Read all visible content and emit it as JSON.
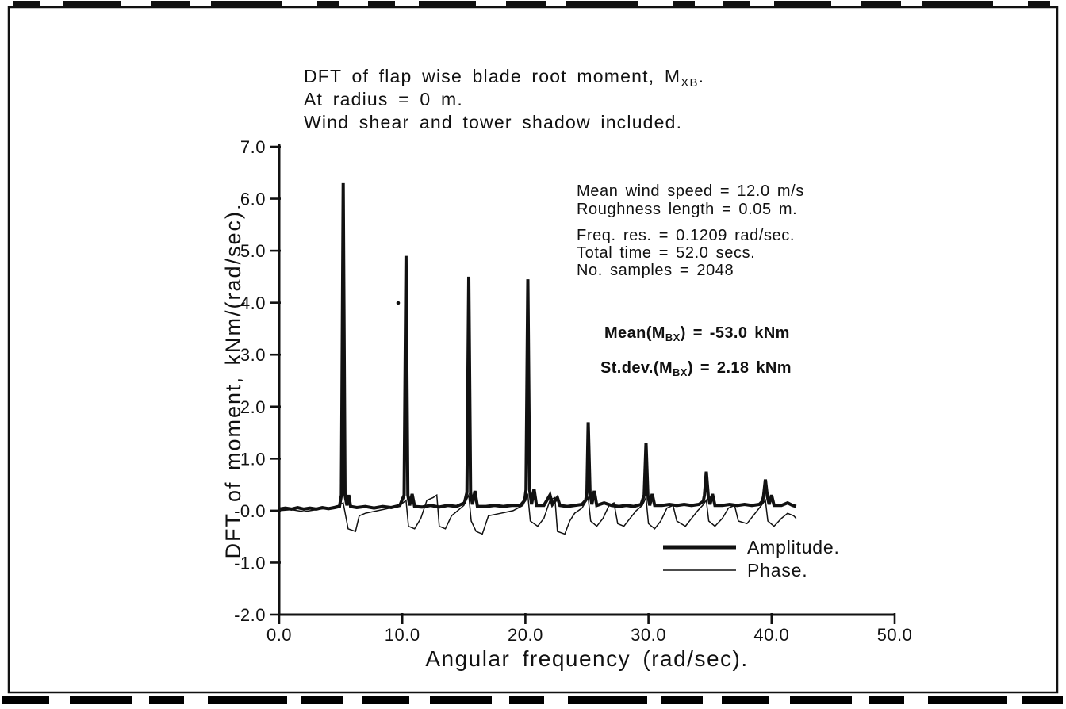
{
  "figure": {
    "title_lines": [
      {
        "pre": "DFT of flap wise blade root moment, M",
        "sub": "XB",
        "post": "."
      },
      {
        "pre": "At radius = 0 m.",
        "sub": "",
        "post": ""
      },
      {
        "pre": "Wind shear and tower shadow included.",
        "sub": "",
        "post": ""
      }
    ],
    "annotations": {
      "wind_speed": "Mean wind speed = 12.0 m/s",
      "roughness": "Roughness length = 0.05 m.",
      "freq_res": "Freq. res. = 0.1209 rad/sec.",
      "total_time": "Total time = 52.0 secs.",
      "samples": "No. samples = 2048",
      "mean": {
        "pre": "Mean(M",
        "sub": "BX",
        "post": ") = -53.0 kNm"
      },
      "stdev": {
        "pre": "St.dev.(M",
        "sub": "BX",
        "post": ") = 2.18 kNm"
      }
    }
  },
  "chart_data": {
    "type": "line",
    "title": "DFT of flap wise blade root moment, MXB. At radius = 0 m. Wind shear and tower shadow included.",
    "xlabel": "Angular frequency (rad/sec).",
    "ylabel": "DFT of moment,  kNm/(rad/sec).",
    "xlim": [
      0,
      50
    ],
    "ylim": [
      -2,
      7
    ],
    "xticks": [
      "0.0",
      "10.0",
      "20.0",
      "30.0",
      "40.0",
      "50.0"
    ],
    "yticks": [
      "7.0",
      "6.0",
      "5.0",
      "4.0",
      "3.0",
      "2.0",
      "1.0",
      "-0.0",
      "-1.0",
      "-2.0"
    ],
    "grid": false,
    "legend_position": "inside lower right",
    "line_color": "#111111",
    "peaks_amplitude": [
      [
        5.2,
        6.3
      ],
      [
        10.3,
        4.9
      ],
      [
        15.4,
        4.5
      ],
      [
        20.2,
        4.45
      ],
      [
        25.1,
        1.7
      ],
      [
        29.8,
        1.3
      ],
      [
        34.7,
        0.75
      ],
      [
        39.5,
        0.6
      ]
    ],
    "series": [
      {
        "name": "Amplitude.",
        "stroke_width": 4,
        "points": [
          [
            0,
            0.03
          ],
          [
            0.5,
            0.05
          ],
          [
            1,
            0.03
          ],
          [
            1.5,
            0.06
          ],
          [
            2,
            0.03
          ],
          [
            2.5,
            0.05
          ],
          [
            3,
            0.03
          ],
          [
            3.5,
            0.06
          ],
          [
            4,
            0.04
          ],
          [
            4.5,
            0.06
          ],
          [
            4.9,
            0.08
          ],
          [
            5.05,
            0.3
          ],
          [
            5.2,
            6.3
          ],
          [
            5.35,
            0.3
          ],
          [
            5.5,
            0.1
          ],
          [
            5.65,
            0.3
          ],
          [
            5.8,
            0.08
          ],
          [
            6.3,
            0.06
          ],
          [
            7,
            0.08
          ],
          [
            7.7,
            0.05
          ],
          [
            8.4,
            0.08
          ],
          [
            9.1,
            0.06
          ],
          [
            9.8,
            0.1
          ],
          [
            10.15,
            0.3
          ],
          [
            10.3,
            4.9
          ],
          [
            10.45,
            0.3
          ],
          [
            10.6,
            0.1
          ],
          [
            10.8,
            0.32
          ],
          [
            11,
            0.08
          ],
          [
            11.6,
            0.07
          ],
          [
            12.3,
            0.1
          ],
          [
            13,
            0.07
          ],
          [
            13.7,
            0.1
          ],
          [
            14.4,
            0.08
          ],
          [
            15.05,
            0.15
          ],
          [
            15.25,
            0.35
          ],
          [
            15.4,
            4.5
          ],
          [
            15.55,
            0.35
          ],
          [
            15.7,
            0.12
          ],
          [
            15.9,
            0.38
          ],
          [
            16.1,
            0.08
          ],
          [
            16.8,
            0.08
          ],
          [
            17.5,
            0.1
          ],
          [
            18.2,
            0.08
          ],
          [
            18.9,
            0.1
          ],
          [
            19.6,
            0.1
          ],
          [
            19.95,
            0.2
          ],
          [
            20.05,
            0.4
          ],
          [
            20.2,
            4.45
          ],
          [
            20.35,
            0.4
          ],
          [
            20.5,
            0.12
          ],
          [
            20.7,
            0.42
          ],
          [
            20.9,
            0.1
          ],
          [
            21.5,
            0.1
          ],
          [
            22,
            0.3
          ],
          [
            22.2,
            0.12
          ],
          [
            22.6,
            0.25
          ],
          [
            22.8,
            0.1
          ],
          [
            23.4,
            0.08
          ],
          [
            24,
            0.1
          ],
          [
            24.6,
            0.12
          ],
          [
            24.9,
            0.2
          ],
          [
            25.0,
            0.35
          ],
          [
            25.1,
            1.7
          ],
          [
            25.25,
            0.35
          ],
          [
            25.4,
            0.12
          ],
          [
            25.6,
            0.38
          ],
          [
            25.8,
            0.1
          ],
          [
            26.4,
            0.15
          ],
          [
            27,
            0.1
          ],
          [
            27.6,
            0.08
          ],
          [
            28.2,
            0.1
          ],
          [
            28.8,
            0.08
          ],
          [
            29.4,
            0.12
          ],
          [
            29.65,
            0.3
          ],
          [
            29.8,
            1.3
          ],
          [
            29.95,
            0.3
          ],
          [
            30.1,
            0.1
          ],
          [
            30.3,
            0.32
          ],
          [
            30.5,
            0.1
          ],
          [
            31.1,
            0.1
          ],
          [
            31.7,
            0.12
          ],
          [
            32.3,
            0.1
          ],
          [
            32.9,
            0.12
          ],
          [
            33.5,
            0.1
          ],
          [
            34.1,
            0.12
          ],
          [
            34.45,
            0.18
          ],
          [
            34.55,
            0.3
          ],
          [
            34.7,
            0.75
          ],
          [
            34.85,
            0.3
          ],
          [
            35,
            0.12
          ],
          [
            35.2,
            0.32
          ],
          [
            35.4,
            0.1
          ],
          [
            36,
            0.1
          ],
          [
            36.6,
            0.12
          ],
          [
            37.2,
            0.1
          ],
          [
            37.8,
            0.12
          ],
          [
            38.4,
            0.1
          ],
          [
            39,
            0.12
          ],
          [
            39.25,
            0.18
          ],
          [
            39.35,
            0.28
          ],
          [
            39.5,
            0.6
          ],
          [
            39.65,
            0.28
          ],
          [
            39.8,
            0.12
          ],
          [
            40,
            0.3
          ],
          [
            40.2,
            0.1
          ],
          [
            40.8,
            0.1
          ],
          [
            41.3,
            0.15
          ],
          [
            41.7,
            0.1
          ],
          [
            42,
            0.08
          ]
        ]
      },
      {
        "name": "Phase.",
        "stroke_width": 1.5,
        "points": [
          [
            0,
            0.0
          ],
          [
            1,
            0.02
          ],
          [
            2,
            -0.02
          ],
          [
            3,
            0.02
          ],
          [
            4,
            0.05
          ],
          [
            4.8,
            0.1
          ],
          [
            5.2,
            0.15
          ],
          [
            5.4,
            -0.1
          ],
          [
            5.6,
            -0.35
          ],
          [
            6.2,
            -0.4
          ],
          [
            6.5,
            -0.1
          ],
          [
            7,
            -0.05
          ],
          [
            8,
            0.0
          ],
          [
            9,
            0.05
          ],
          [
            9.8,
            0.1
          ],
          [
            10.3,
            0.2
          ],
          [
            10.5,
            -0.3
          ],
          [
            11,
            -0.35
          ],
          [
            11.5,
            -0.15
          ],
          [
            12,
            0.2
          ],
          [
            12.5,
            0.25
          ],
          [
            12.8,
            0.3
          ],
          [
            13,
            -0.3
          ],
          [
            13.5,
            -0.35
          ],
          [
            14,
            -0.1
          ],
          [
            14.5,
            0.0
          ],
          [
            15,
            0.1
          ],
          [
            15.4,
            0.3
          ],
          [
            15.6,
            -0.2
          ],
          [
            16,
            -0.4
          ],
          [
            16.5,
            -0.45
          ],
          [
            17,
            -0.1
          ],
          [
            18,
            -0.05
          ],
          [
            19,
            0.0
          ],
          [
            19.8,
            0.1
          ],
          [
            20.2,
            0.3
          ],
          [
            20.4,
            -0.2
          ],
          [
            21,
            -0.3
          ],
          [
            21.5,
            -0.15
          ],
          [
            22,
            0.2
          ],
          [
            22.4,
            0.25
          ],
          [
            22.6,
            -0.4
          ],
          [
            23.2,
            -0.45
          ],
          [
            23.6,
            -0.2
          ],
          [
            24,
            -0.05
          ],
          [
            24.6,
            0.05
          ],
          [
            25.1,
            0.25
          ],
          [
            25.3,
            -0.2
          ],
          [
            25.8,
            -0.3
          ],
          [
            26.3,
            -0.15
          ],
          [
            26.8,
            0.1
          ],
          [
            27.2,
            0.15
          ],
          [
            27.5,
            -0.25
          ],
          [
            28,
            -0.3
          ],
          [
            28.5,
            -0.15
          ],
          [
            29,
            0.0
          ],
          [
            29.5,
            0.1
          ],
          [
            29.8,
            0.25
          ],
          [
            30,
            -0.25
          ],
          [
            30.5,
            -0.35
          ],
          [
            31,
            -0.2
          ],
          [
            31.5,
            0.05
          ],
          [
            32,
            0.1
          ],
          [
            32.3,
            -0.2
          ],
          [
            33,
            -0.3
          ],
          [
            33.5,
            -0.15
          ],
          [
            34,
            0.0
          ],
          [
            34.4,
            0.1
          ],
          [
            34.7,
            0.2
          ],
          [
            34.9,
            -0.2
          ],
          [
            35.4,
            -0.3
          ],
          [
            36,
            -0.15
          ],
          [
            36.5,
            0.05
          ],
          [
            37,
            0.1
          ],
          [
            37.3,
            -0.2
          ],
          [
            38,
            -0.25
          ],
          [
            38.5,
            -0.1
          ],
          [
            39,
            0.05
          ],
          [
            39.5,
            0.2
          ],
          [
            39.7,
            -0.2
          ],
          [
            40.2,
            -0.3
          ],
          [
            40.8,
            -0.15
          ],
          [
            41.3,
            -0.05
          ],
          [
            41.8,
            -0.1
          ],
          [
            42,
            -0.15
          ]
        ]
      }
    ]
  }
}
